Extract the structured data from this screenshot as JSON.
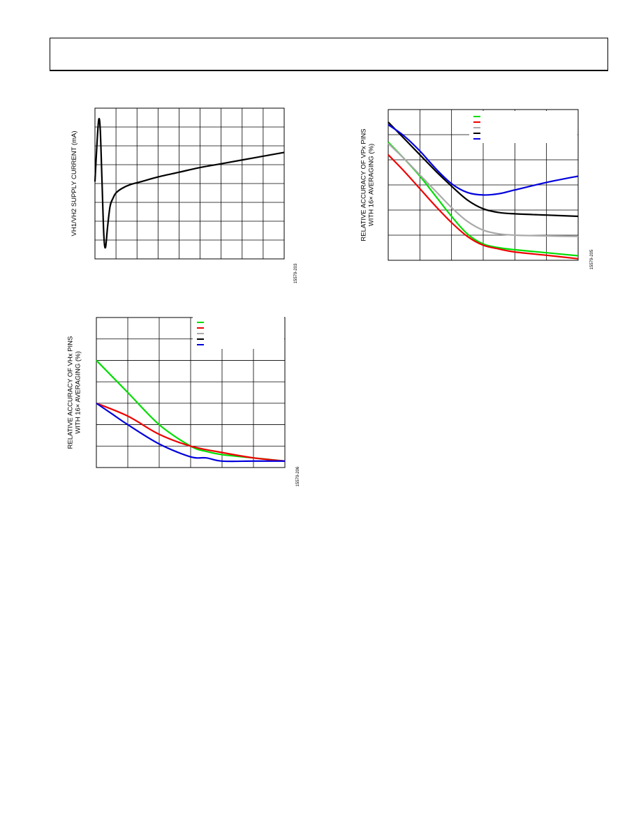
{
  "page": {
    "header": {}
  },
  "charts": [
    {
      "id": "chart1",
      "figure_id": "15579-203",
      "ylabel_lines": [
        "VH1/VH2 SUPPLY CURRENT (mA)"
      ]
    },
    {
      "id": "chart2",
      "figure_id": "15579-205",
      "ylabel_lines": [
        "RELATIVE ACCURACY OF VPx PINS",
        "WITH 16× AVERAGING (%)"
      ]
    },
    {
      "id": "chart3",
      "figure_id": "15579-206",
      "ylabel_lines": [
        "RELATIVE ACCURACY OF VHx PINS",
        "WITH 16× AVERAGING (%)"
      ]
    }
  ],
  "chart_data": [
    {
      "type": "line",
      "xlim": [
        0,
        9
      ],
      "ylim": [
        0,
        8
      ],
      "grid": true,
      "series": [
        {
          "color": "#000000",
          "x": [
            0,
            0.1,
            0.18,
            0.25,
            0.33,
            0.42,
            0.5,
            0.6,
            0.72,
            0.85,
            1.0,
            1.3,
            1.7,
            2.2,
            3,
            4,
            5,
            6,
            7,
            8,
            9
          ],
          "y": [
            4.1,
            6.2,
            7.4,
            6.9,
            4.3,
            1.3,
            0.6,
            1.7,
            2.8,
            3.2,
            3.5,
            3.75,
            3.95,
            4.1,
            4.35,
            4.6,
            4.85,
            5.05,
            5.25,
            5.45,
            5.65
          ]
        }
      ]
    },
    {
      "type": "line",
      "xlim": [
        0,
        6
      ],
      "ylim": [
        0,
        6
      ],
      "grid": true,
      "legend_position": "top-right",
      "series": [
        {
          "color": "#00dd00",
          "x": [
            0,
            0.5,
            1,
            1.5,
            2,
            2.5,
            3,
            3.5,
            4,
            5,
            6
          ],
          "y": [
            4.7,
            4.05,
            3.35,
            2.55,
            1.75,
            1.05,
            0.65,
            0.5,
            0.42,
            0.3,
            0.18
          ]
        },
        {
          "color": "#ee0000",
          "x": [
            0,
            0.5,
            1,
            1.5,
            2,
            2.5,
            3,
            3.5,
            4,
            5,
            6
          ],
          "y": [
            4.2,
            3.55,
            2.85,
            2.15,
            1.5,
            0.95,
            0.6,
            0.45,
            0.33,
            0.2,
            0.06
          ]
        },
        {
          "color": "#aaaaaa",
          "x": [
            0,
            0.5,
            1,
            1.5,
            2,
            2.5,
            3,
            3.5,
            4,
            5,
            6
          ],
          "y": [
            4.65,
            4.05,
            3.4,
            2.75,
            2.1,
            1.55,
            1.2,
            1.05,
            1.0,
            0.97,
            0.95
          ]
        },
        {
          "color": "#000000",
          "x": [
            0,
            0.5,
            1,
            1.5,
            2,
            2.5,
            3,
            3.5,
            4,
            5,
            6
          ],
          "y": [
            5.5,
            4.85,
            4.2,
            3.55,
            2.95,
            2.4,
            2.05,
            1.9,
            1.85,
            1.8,
            1.75
          ]
        },
        {
          "color": "#0000dd",
          "x": [
            0,
            0.5,
            1,
            1.5,
            2,
            2.5,
            3,
            3.5,
            4,
            5,
            6
          ],
          "y": [
            5.4,
            4.95,
            4.35,
            3.65,
            3.05,
            2.7,
            2.6,
            2.65,
            2.8,
            3.1,
            3.35
          ]
        }
      ]
    },
    {
      "type": "line",
      "xlim": [
        0,
        6
      ],
      "ylim": [
        0,
        7
      ],
      "grid": true,
      "legend_position": "top-right",
      "series": [
        {
          "color": "#00dd00",
          "x": [
            0,
            1,
            2,
            3,
            3.5,
            4,
            5,
            6
          ],
          "y": [
            5.0,
            3.5,
            2.0,
            1.0,
            0.75,
            0.6,
            0.45,
            0.3
          ]
        },
        {
          "color": "#ee0000",
          "x": [
            0,
            1,
            2,
            3,
            4,
            5,
            6
          ],
          "y": [
            3.0,
            2.4,
            1.55,
            1.0,
            0.7,
            0.45,
            0.3
          ]
        },
        {
          "color": "#aaaaaa",
          "x": [],
          "y": []
        },
        {
          "color": "#000000",
          "x": [],
          "y": []
        },
        {
          "color": "#0000dd",
          "x": [
            0,
            0.5,
            1,
            2,
            3,
            3.5,
            4,
            5,
            6
          ],
          "y": [
            3.0,
            2.5,
            2.0,
            1.1,
            0.5,
            0.45,
            0.3,
            0.3,
            0.3
          ]
        }
      ]
    }
  ]
}
